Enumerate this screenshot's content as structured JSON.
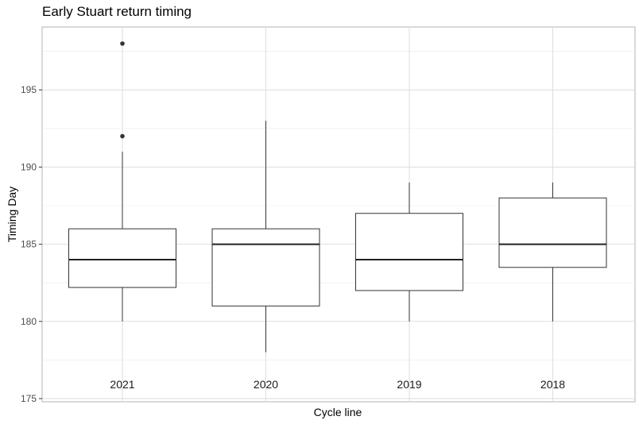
{
  "chart_data": {
    "type": "boxplot",
    "title": "Early Stuart return timing",
    "xlabel": "Cycle line",
    "ylabel": "Timing Day",
    "ylim": [
      175,
      199
    ],
    "yticks": [
      175,
      180,
      185,
      190,
      195
    ],
    "grid": true,
    "categories": [
      "2021",
      "2020",
      "2019",
      "2018"
    ],
    "boxes": [
      {
        "category": "2021",
        "whisker_low": 180,
        "q1": 182.2,
        "median": 184,
        "q3": 186,
        "whisker_high": 191,
        "outliers": [
          192,
          198
        ]
      },
      {
        "category": "2020",
        "whisker_low": 178,
        "q1": 181,
        "median": 185,
        "q3": 186,
        "whisker_high": 193,
        "outliers": []
      },
      {
        "category": "2019",
        "whisker_low": 180,
        "q1": 182,
        "median": 184,
        "q3": 187,
        "whisker_high": 189,
        "outliers": []
      },
      {
        "category": "2018",
        "whisker_low": 180,
        "q1": 183.5,
        "median": 185,
        "q3": 188,
        "whisker_high": 189,
        "outliers": []
      }
    ]
  }
}
